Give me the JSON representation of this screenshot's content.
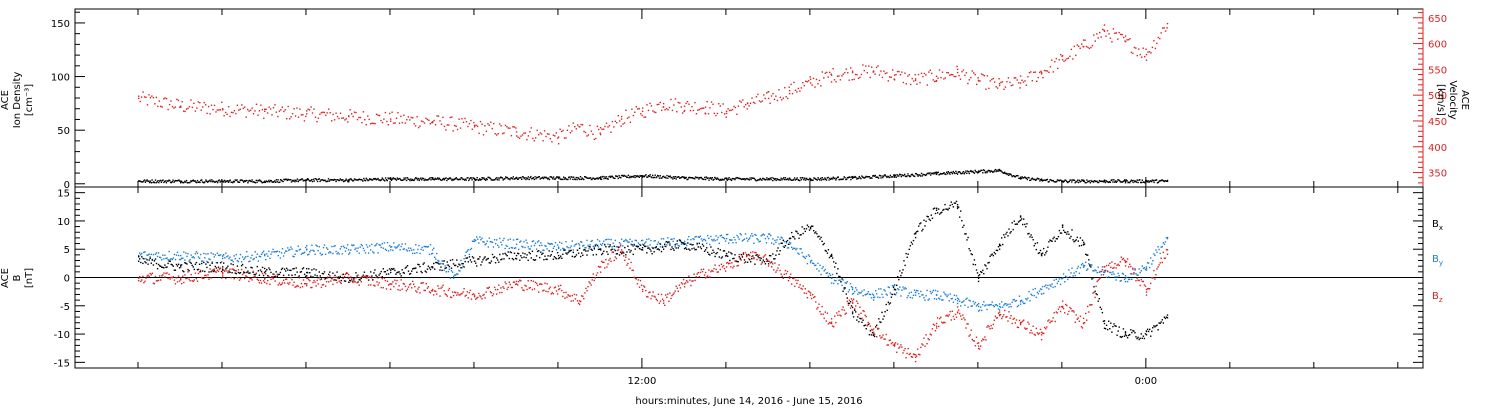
{
  "chart_data": [
    {
      "type": "scatter",
      "panel": "top",
      "left_axis": {
        "label_lines": [
          "ACE",
          "Ion Density",
          "[cm⁻³]"
        ],
        "ticks": [
          0,
          50,
          100,
          150
        ],
        "tick_labels": [
          "0",
          "50",
          "100",
          "150"
        ],
        "ylim": [
          -3,
          163
        ]
      },
      "right_axis": {
        "label_lines": [
          "ACE",
          "Velocity",
          "[km/s]"
        ],
        "ticks": [
          350,
          400,
          450,
          500,
          550,
          600,
          650
        ],
        "tick_labels": [
          "350",
          "400",
          "450",
          "500",
          "550",
          "600",
          "650"
        ],
        "ylim": [
          322,
          667
        ],
        "color": "#dd2222"
      },
      "series": [
        {
          "axis": "left",
          "color": "#000000",
          "x": [
            0,
            1,
            2,
            3,
            4,
            5,
            6,
            7,
            8,
            9,
            10,
            11,
            12,
            13,
            14,
            15,
            16,
            17,
            18,
            19,
            20,
            20.5,
            21,
            21.5,
            22,
            22.5,
            23,
            23.5,
            24,
            24.5
          ],
          "y": [
            3,
            3,
            3,
            3,
            4,
            4,
            5,
            5,
            5,
            6,
            6,
            6,
            8,
            6,
            5,
            5,
            5,
            6,
            8,
            10,
            12,
            13,
            6,
            4,
            3,
            3,
            3,
            3,
            3,
            3
          ]
        },
        {
          "axis": "right",
          "color": "#dd2222",
          "x": [
            0,
            1,
            2,
            3,
            4,
            5,
            6,
            7,
            8,
            9,
            10,
            10.5,
            11,
            11.5,
            12,
            12.5,
            13,
            13.5,
            14,
            14.5,
            15,
            15.5,
            16,
            16.5,
            17,
            17.5,
            18,
            18.5,
            19,
            19.5,
            20,
            20.5,
            21,
            21.5,
            22,
            22.5,
            23,
            23.5,
            24,
            24.5
          ],
          "y": [
            495,
            480,
            475,
            470,
            465,
            460,
            455,
            450,
            440,
            430,
            420,
            440,
            425,
            455,
            470,
            485,
            480,
            478,
            470,
            485,
            495,
            510,
            525,
            540,
            545,
            548,
            540,
            530,
            538,
            545,
            530,
            520,
            525,
            545,
            570,
            595,
            625,
            605,
            580,
            640
          ]
        }
      ]
    },
    {
      "type": "scatter",
      "panel": "bottom",
      "left_axis": {
        "label_lines": [
          "ACE",
          "B",
          "[nT]"
        ],
        "ticks": [
          -15,
          -10,
          -5,
          0,
          5,
          10,
          15
        ],
        "tick_labels": [
          "-15",
          "-10",
          "-5",
          "0",
          "5",
          "10",
          "15"
        ],
        "ylim": [
          -16,
          16
        ]
      },
      "legend_position": "right",
      "series": [
        {
          "name": "Bx",
          "legend_main": "B",
          "legend_sub": "x",
          "color": "#000000",
          "x": [
            0,
            1,
            2,
            3,
            4,
            5,
            6,
            7,
            8,
            9,
            10,
            11,
            12,
            13,
            14,
            15,
            15.5,
            16,
            16.5,
            17,
            17.5,
            18,
            18.5,
            19,
            19.5,
            20,
            20.5,
            21,
            21.5,
            22,
            22.5,
            23,
            23.5,
            24,
            24.5
          ],
          "y": [
            3,
            2,
            2,
            1,
            1,
            0,
            1,
            2,
            3,
            4,
            4,
            5,
            5,
            6,
            4,
            3,
            7,
            9,
            4,
            -6,
            -10,
            -2,
            8,
            12,
            13,
            0,
            6,
            11,
            4,
            9,
            6,
            -8,
            -10,
            -10,
            -7
          ]
        },
        {
          "name": "By",
          "legend_main": "B",
          "legend_sub": "y",
          "color": "#1f7fd6",
          "x": [
            0,
            1,
            2,
            3,
            4,
            5,
            6,
            7,
            7.5,
            8,
            9,
            10,
            11,
            12,
            13,
            14,
            15,
            15.5,
            16,
            16.5,
            17,
            17.5,
            18,
            18.5,
            19,
            19.5,
            20,
            20.5,
            21,
            21.5,
            22,
            22.5,
            23,
            23.5,
            24,
            24.5
          ],
          "y": [
            4,
            4,
            3.5,
            4,
            5,
            5,
            5.5,
            5,
            0,
            6.5,
            6,
            5.5,
            6,
            6,
            6.5,
            7,
            7,
            6,
            3,
            0,
            -2,
            -3,
            -2,
            -3,
            -3,
            -4,
            -5,
            -5,
            -4,
            -2,
            0,
            2,
            1,
            0,
            2,
            7
          ]
        },
        {
          "name": "Bz",
          "legend_main": "B",
          "legend_sub": "z",
          "color": "#dd2222",
          "x": [
            0,
            1,
            2,
            3,
            4,
            5,
            6,
            7,
            8,
            9,
            10,
            10.5,
            11,
            11.5,
            12,
            12.5,
            13,
            13.5,
            14,
            14.5,
            15,
            15.5,
            16,
            16.5,
            17,
            17.5,
            18,
            18.5,
            19,
            19.5,
            20,
            20.5,
            21,
            21.5,
            22,
            22.5,
            23,
            23.5,
            24,
            24.5
          ],
          "y": [
            0,
            0,
            1,
            0,
            -1,
            0,
            -1,
            -2,
            -3,
            -1,
            -2,
            -4,
            2,
            5,
            -2,
            -4,
            -1,
            1,
            2,
            4,
            3,
            0,
            -3,
            -8,
            -4,
            -9,
            -12,
            -14,
            -8,
            -6,
            -12,
            -6,
            -8,
            -10,
            -5,
            -8,
            2,
            3,
            -2,
            5
          ]
        }
      ]
    }
  ],
  "x_axis": {
    "label": "hours:minutes, June 14, 2016 - June 15, 2016",
    "xlim": [
      -1.5,
      30.6
    ],
    "labeled_ticks": [
      {
        "x": 12,
        "label": "12:00"
      },
      {
        "x": 24,
        "label": "0:00"
      }
    ],
    "minor_ticks": [
      0,
      2,
      4,
      6,
      8,
      10,
      12,
      14,
      16,
      18,
      20,
      22,
      24,
      26,
      28,
      30
    ]
  }
}
